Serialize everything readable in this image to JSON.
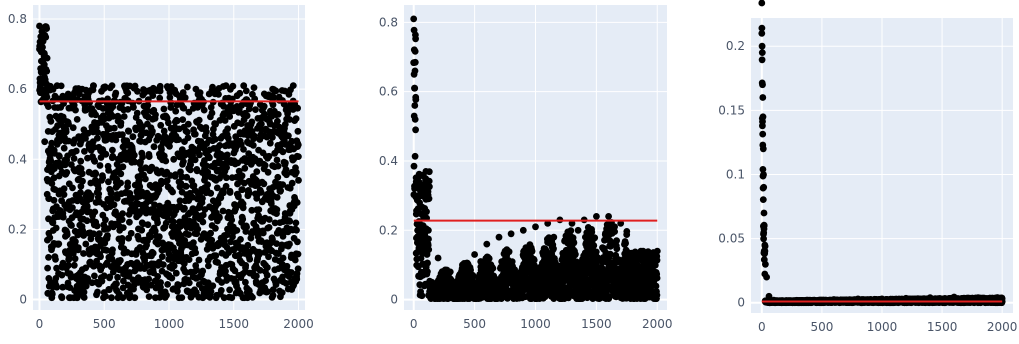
{
  "colors": {
    "plot_bg": "#e5ecf6",
    "grid": "#ffffff",
    "point": "#000000",
    "mean_line": "#e02020",
    "tick_text": "#4a5568"
  },
  "chart_data": [
    {
      "type": "scatter",
      "title": "",
      "xlabel": "",
      "ylabel": "",
      "xlim": [
        -50,
        2050
      ],
      "ylim": [
        -0.03,
        0.84
      ],
      "x_ticks": [
        0,
        500,
        1000,
        1500,
        2000
      ],
      "y_ticks": [
        0,
        0.2,
        0.4,
        0.6,
        0.8
      ],
      "x_tick_labels": [
        "0",
        "500",
        "1000",
        "1500",
        "2000"
      ],
      "y_tick_labels": [
        "0",
        "0.2",
        "0.4",
        "0.6",
        "0.8"
      ],
      "grid": true,
      "legend": false,
      "reference_line": {
        "y": 0.565,
        "x_range": [
          0,
          2000
        ]
      },
      "series": [
        {
          "description": "about 2000 points; x from 0 to 2000; y spread evenly between 0 and 0.61 with a few higher points near x=0 up to 0.78",
          "x": [
            0,
            5,
            10,
            15,
            20,
            30,
            40,
            50,
            60,
            70,
            80,
            100,
            120,
            150,
            180,
            200,
            230,
            260,
            300,
            330,
            360,
            400,
            430,
            460,
            500,
            530,
            560,
            600,
            640,
            680,
            720,
            760,
            800,
            840,
            880,
            920,
            960,
            1000,
            1040,
            1080,
            1120,
            1160,
            1200,
            1240,
            1280,
            1320,
            1360,
            1400,
            1440,
            1480,
            1520,
            1560,
            1600,
            1640,
            1680,
            1720,
            1760,
            1800,
            1840,
            1880,
            1920,
            1960,
            2000
          ],
          "y": [
            0.78,
            0.72,
            0.75,
            0.68,
            0.62,
            0.57,
            0.45,
            0.6,
            0.3,
            0.12,
            0.52,
            0.22,
            0.05,
            0.41,
            0.58,
            0.18,
            0.33,
            0.49,
            0.07,
            0.6,
            0.27,
            0.44,
            0.15,
            0.55,
            0.02,
            0.38,
            0.61,
            0.24,
            0.47,
            0.1,
            0.56,
            0.31,
            0.04,
            0.52,
            0.2,
            0.6,
            0.36,
            0.13,
            0.48,
            0.58,
            0.26,
            0.42,
            0.08,
            0.59,
            0.35,
            0.17,
            0.5,
            0.29,
            0.61,
            0.06,
            0.45,
            0.22,
            0.57,
            0.39,
            0.11,
            0.54,
            0.3,
            0.6,
            0.19,
            0.46,
            0.03,
            0.61,
            0.34
          ]
        }
      ]
    },
    {
      "type": "scatter",
      "title": "",
      "xlabel": "",
      "ylabel": "",
      "xlim": [
        -80,
        2080
      ],
      "ylim": [
        -0.03,
        0.85
      ],
      "x_ticks": [
        0,
        500,
        1000,
        1500,
        2000
      ],
      "y_ticks": [
        0,
        0.2,
        0.4,
        0.6,
        0.8
      ],
      "x_tick_labels": [
        "0",
        "500",
        "1000",
        "1500",
        "2000"
      ],
      "y_tick_labels": [
        "0",
        "0.2",
        "0.4",
        "0.6",
        "0.8"
      ],
      "grid": true,
      "legend": false,
      "reference_line": {
        "y": 0.228,
        "x_range": [
          0,
          2000
        ]
      },
      "series": [
        {
          "description": "about 2000 points; high spike near x=0 up to 0.81; dense band between 0 and 0.24 with arch-shaped bursts",
          "x": [
            0,
            3,
            6,
            9,
            12,
            15,
            20,
            30,
            40,
            60,
            80,
            100,
            120,
            150,
            200,
            250,
            300,
            350,
            400,
            450,
            500,
            550,
            600,
            650,
            700,
            750,
            800,
            850,
            900,
            950,
            1000,
            1050,
            1100,
            1150,
            1200,
            1250,
            1300,
            1350,
            1400,
            1450,
            1500,
            1550,
            1600,
            1650,
            1700,
            1750,
            1800,
            1850,
            1900,
            1950,
            2000
          ],
          "y": [
            0.81,
            0.65,
            0.61,
            0.56,
            0.52,
            0.49,
            0.34,
            0.25,
            0.18,
            0.3,
            0.33,
            0.37,
            0.2,
            0.05,
            0.12,
            0.02,
            0.08,
            0.03,
            0.1,
            0.06,
            0.13,
            0.11,
            0.16,
            0.09,
            0.18,
            0.14,
            0.19,
            0.07,
            0.2,
            0.12,
            0.21,
            0.05,
            0.22,
            0.18,
            0.23,
            0.1,
            0.22,
            0.2,
            0.23,
            0.08,
            0.24,
            0.15,
            0.24,
            0.21,
            0.22,
            0.06,
            0.1,
            0.02,
            0.12,
            0.08,
            0.14
          ]
        }
      ]
    },
    {
      "type": "scatter",
      "title": "",
      "xlabel": "",
      "ylabel": "",
      "xlim": [
        -90,
        2090
      ],
      "ylim": [
        -0.008,
        0.222
      ],
      "x_ticks": [
        0,
        500,
        1000,
        1500,
        2000
      ],
      "y_ticks": [
        0,
        0.05,
        0.1,
        0.15,
        0.2
      ],
      "x_tick_labels": [
        "0",
        "500",
        "1000",
        "1500",
        "2000"
      ],
      "y_tick_labels": [
        "0",
        "0.05",
        "0.1",
        "0.15",
        "0.2"
      ],
      "grid": true,
      "legend": false,
      "reference_line": {
        "y": 0.001,
        "x_range": [
          0,
          2000
        ]
      },
      "series": [
        {
          "description": "about 2000 points; spike near x=0 up to 0.21 decaying quickly; remaining points clustered near 0 with a slight rise to about 0.004",
          "x": [
            0,
            2,
            4,
            6,
            8,
            10,
            12,
            14,
            16,
            18,
            20,
            25,
            30,
            40,
            60,
            100,
            200,
            300,
            400,
            500,
            600,
            700,
            800,
            900,
            1000,
            1100,
            1200,
            1300,
            1400,
            1500,
            1600,
            1700,
            1800,
            1900,
            2000
          ],
          "y": [
            0.21,
            0.2,
            0.195,
            0.17,
            0.16,
            0.145,
            0.12,
            0.1,
            0.09,
            0.07,
            0.06,
            0.045,
            0.03,
            0.02,
            0.005,
            0.002,
            0.001,
            0.0015,
            0.002,
            0.001,
            0.0025,
            0.0015,
            0.003,
            0.002,
            0.003,
            0.0025,
            0.0035,
            0.002,
            0.004,
            0.003,
            0.0045,
            0.003,
            0.004,
            0.0035,
            0.001
          ]
        }
      ]
    }
  ]
}
